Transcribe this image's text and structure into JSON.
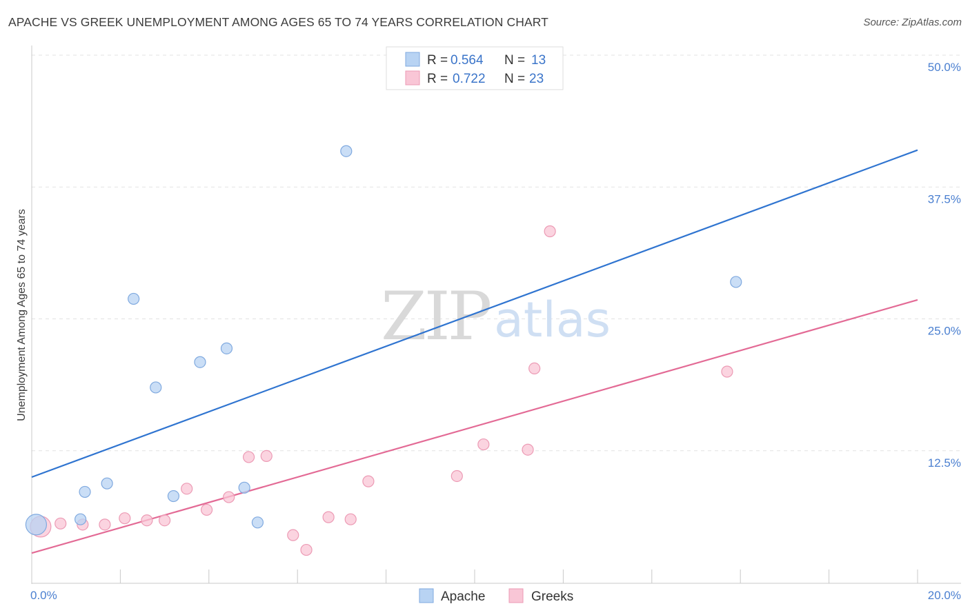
{
  "title": "APACHE VS GREEK UNEMPLOYMENT AMONG AGES 65 TO 74 YEARS CORRELATION CHART",
  "source": "Source: ZipAtlas.com",
  "watermark": {
    "zip": "ZIP",
    "atlas": "atlas"
  },
  "colors": {
    "apache_fill": "#b8d3f3",
    "apache_stroke": "#7fa9df",
    "apache_line": "#2f74d0",
    "greeks_fill": "#f9c6d6",
    "greeks_stroke": "#ec9ab4",
    "greeks_line": "#e36a95",
    "tick_text": "#4a7fd0",
    "grid": "#e2e2e2"
  },
  "legend": {
    "r_label": "R =",
    "n_label": "N =",
    "rows": [
      {
        "series": "Apache",
        "r": "0.564",
        "n": "13"
      },
      {
        "series": "Greeks",
        "r": "0.722",
        "n": "23"
      }
    ]
  },
  "bottom_legend": [
    "Apache",
    "Greeks"
  ],
  "chart_data": {
    "type": "scatter",
    "title": "APACHE VS GREEK UNEMPLOYMENT AMONG AGES 65 TO 74 YEARS CORRELATION CHART",
    "xlabel": "",
    "ylabel": "Unemployment Among Ages 65 to 74 years",
    "xlim": [
      0,
      20
    ],
    "ylim": [
      0,
      50
    ],
    "x_tick_labels": {
      "min": "0.0%",
      "max": "20.0%"
    },
    "y_ticks": [
      12.5,
      25.0,
      37.5,
      50.0
    ],
    "y_tick_labels": [
      "12.5%",
      "25.0%",
      "37.5%",
      "50.0%"
    ],
    "grid": true,
    "legend_position": "top-center",
    "series": [
      {
        "name": "Apache",
        "r": 0.564,
        "n": 13,
        "points": [
          {
            "x": 0.1,
            "y": 5.5,
            "big": true
          },
          {
            "x": 1.1,
            "y": 6.0
          },
          {
            "x": 1.2,
            "y": 8.6
          },
          {
            "x": 1.7,
            "y": 9.4
          },
          {
            "x": 2.3,
            "y": 26.9
          },
          {
            "x": 2.8,
            "y": 18.5
          },
          {
            "x": 3.2,
            "y": 8.2
          },
          {
            "x": 3.8,
            "y": 20.9
          },
          {
            "x": 4.4,
            "y": 22.2
          },
          {
            "x": 4.8,
            "y": 9.0
          },
          {
            "x": 5.1,
            "y": 5.7
          },
          {
            "x": 7.1,
            "y": 40.9
          },
          {
            "x": 15.9,
            "y": 28.5
          }
        ],
        "trend": {
          "x": [
            0,
            20
          ],
          "y": [
            10.0,
            41.0
          ]
        }
      },
      {
        "name": "Greeks",
        "r": 0.722,
        "n": 23,
        "points": [
          {
            "x": 0.2,
            "y": 5.3,
            "big": true
          },
          {
            "x": 0.65,
            "y": 5.6
          },
          {
            "x": 1.15,
            "y": 5.5
          },
          {
            "x": 1.65,
            "y": 5.5
          },
          {
            "x": 2.1,
            "y": 6.1
          },
          {
            "x": 2.6,
            "y": 5.9
          },
          {
            "x": 3.0,
            "y": 5.9
          },
          {
            "x": 3.5,
            "y": 8.9
          },
          {
            "x": 3.95,
            "y": 6.9
          },
          {
            "x": 4.45,
            "y": 8.1
          },
          {
            "x": 4.9,
            "y": 11.9
          },
          {
            "x": 5.3,
            "y": 12.0
          },
          {
            "x": 5.9,
            "y": 4.5
          },
          {
            "x": 6.2,
            "y": 3.1
          },
          {
            "x": 6.7,
            "y": 6.2
          },
          {
            "x": 7.2,
            "y": 6.0
          },
          {
            "x": 7.6,
            "y": 9.6
          },
          {
            "x": 9.6,
            "y": 10.1
          },
          {
            "x": 10.2,
            "y": 13.1
          },
          {
            "x": 11.2,
            "y": 12.6
          },
          {
            "x": 11.35,
            "y": 20.3
          },
          {
            "x": 11.7,
            "y": 33.3
          },
          {
            "x": 15.7,
            "y": 20.0
          }
        ],
        "trend": {
          "x": [
            0,
            20
          ],
          "y": [
            2.8,
            26.8
          ]
        }
      }
    ]
  }
}
